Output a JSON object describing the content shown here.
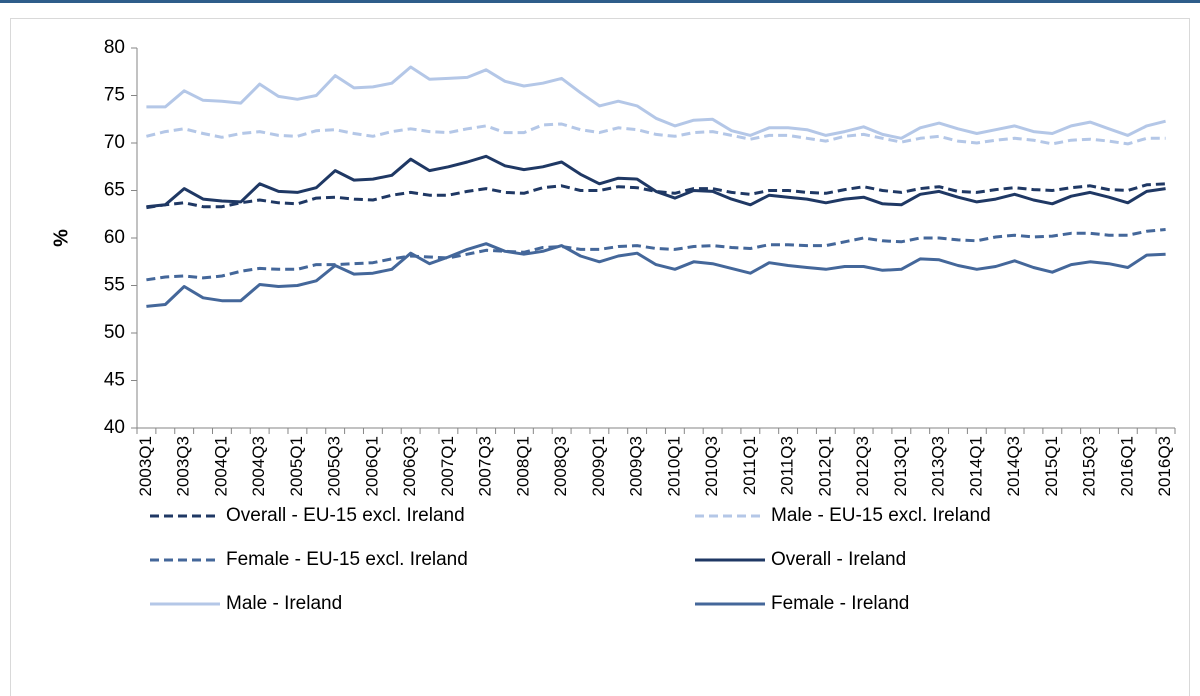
{
  "chart_data": {
    "type": "line",
    "y_label": "%",
    "categories": [
      "2003Q1",
      null,
      "2003Q3",
      null,
      "2004Q1",
      null,
      "2004Q3",
      null,
      "2005Q1",
      null,
      "2005Q3",
      null,
      "2006Q1",
      null,
      "2006Q3",
      null,
      "2007Q1",
      null,
      "2007Q3",
      null,
      "2008Q1",
      null,
      "2008Q3",
      null,
      "2009Q1",
      null,
      "2009Q3",
      null,
      "2010Q1",
      null,
      "2010Q3",
      null,
      "2011Q1",
      null,
      "2011Q3",
      null,
      "2012Q1",
      null,
      "2012Q3",
      null,
      "2013Q1",
      null,
      "2013Q3",
      null,
      "2014Q1",
      null,
      "2014Q3",
      null,
      "2015Q1",
      null,
      "2015Q3",
      null,
      "2016Q1",
      null,
      "2016Q3"
    ],
    "ylim": [
      40,
      80
    ],
    "yticks": [
      40,
      45,
      50,
      55,
      60,
      65,
      70,
      75,
      80
    ],
    "grid": false,
    "legend": "bottom",
    "series": [
      {
        "name": "Overall - EU-15 excl. Ireland",
        "color": "#1f3864",
        "dash": true,
        "values": [
          63.2,
          63.5,
          63.7,
          63.3,
          63.3,
          63.7,
          64.0,
          63.7,
          63.6,
          64.2,
          64.3,
          64.1,
          64.0,
          64.5,
          64.8,
          64.5,
          64.5,
          64.9,
          65.2,
          64.8,
          64.7,
          65.3,
          65.5,
          65.0,
          65.0,
          65.4,
          65.3,
          64.9,
          64.7,
          65.2,
          65.2,
          64.8,
          64.6,
          65.0,
          65.0,
          64.8,
          64.7,
          65.1,
          65.4,
          65.0,
          64.8,
          65.2,
          65.4,
          64.9,
          64.8,
          65.1,
          65.3,
          65.1,
          65.0,
          65.3,
          65.5,
          65.1,
          65.0,
          65.6,
          65.7
        ]
      },
      {
        "name": "Male - EU-15 excl. Ireland",
        "color": "#b4c7e7",
        "dash": true,
        "values": [
          70.7,
          71.2,
          71.5,
          71.0,
          70.6,
          71.0,
          71.2,
          70.8,
          70.7,
          71.3,
          71.4,
          71.0,
          70.7,
          71.2,
          71.5,
          71.2,
          71.1,
          71.5,
          71.8,
          71.1,
          71.1,
          71.9,
          72.0,
          71.4,
          71.1,
          71.6,
          71.4,
          70.9,
          70.7,
          71.1,
          71.2,
          70.8,
          70.4,
          70.8,
          70.8,
          70.5,
          70.2,
          70.7,
          70.9,
          70.5,
          70.1,
          70.5,
          70.7,
          70.2,
          70.0,
          70.3,
          70.5,
          70.3,
          69.9,
          70.3,
          70.4,
          70.2,
          69.9,
          70.5,
          70.5
        ]
      },
      {
        "name": "Female - EU-15 excl. Ireland",
        "color": "#44679a",
        "dash": true,
        "values": [
          55.6,
          55.9,
          56.0,
          55.8,
          56.0,
          56.5,
          56.8,
          56.7,
          56.7,
          57.2,
          57.2,
          57.3,
          57.4,
          57.8,
          58.1,
          58.0,
          57.9,
          58.3,
          58.7,
          58.6,
          58.5,
          59.0,
          59.1,
          58.8,
          58.8,
          59.1,
          59.2,
          58.9,
          58.8,
          59.1,
          59.2,
          59.0,
          58.9,
          59.3,
          59.3,
          59.2,
          59.2,
          59.6,
          60.0,
          59.7,
          59.6,
          60.0,
          60.0,
          59.8,
          59.7,
          60.1,
          60.3,
          60.1,
          60.2,
          60.5,
          60.5,
          60.3,
          60.3,
          60.7,
          60.9
        ]
      },
      {
        "name": "Overall - Ireland",
        "color": "#1f3864",
        "dash": false,
        "values": [
          63.3,
          63.5,
          65.2,
          64.1,
          63.9,
          63.8,
          65.7,
          64.9,
          64.8,
          65.3,
          67.1,
          66.1,
          66.2,
          66.6,
          68.3,
          67.1,
          67.5,
          68.0,
          68.6,
          67.6,
          67.2,
          67.5,
          68.0,
          66.7,
          65.7,
          66.3,
          66.2,
          64.9,
          64.2,
          65.0,
          64.9,
          64.1,
          63.5,
          64.5,
          64.3,
          64.1,
          63.7,
          64.1,
          64.3,
          63.6,
          63.5,
          64.6,
          64.9,
          64.3,
          63.8,
          64.1,
          64.6,
          64.0,
          63.6,
          64.4,
          64.8,
          64.3,
          63.7,
          64.9,
          65.2
        ]
      },
      {
        "name": "Male - Ireland",
        "color": "#b4c7e7",
        "dash": false,
        "values": [
          73.8,
          73.8,
          75.5,
          74.5,
          74.4,
          74.2,
          76.2,
          74.9,
          74.6,
          75.0,
          77.1,
          75.8,
          75.9,
          76.3,
          78.0,
          76.7,
          76.8,
          76.9,
          77.7,
          76.5,
          76.0,
          76.3,
          76.8,
          75.3,
          73.9,
          74.4,
          73.9,
          72.6,
          71.8,
          72.4,
          72.5,
          71.3,
          70.8,
          71.6,
          71.6,
          71.4,
          70.8,
          71.2,
          71.7,
          70.9,
          70.5,
          71.6,
          72.1,
          71.5,
          71.0,
          71.4,
          71.8,
          71.2,
          71.0,
          71.8,
          72.2,
          71.5,
          70.8,
          71.8,
          72.3
        ]
      },
      {
        "name": "Female - Ireland",
        "color": "#44679a",
        "dash": false,
        "values": [
          52.8,
          53.0,
          54.9,
          53.7,
          53.4,
          53.4,
          55.1,
          54.9,
          55.0,
          55.5,
          57.1,
          56.2,
          56.3,
          56.7,
          58.4,
          57.3,
          58.0,
          58.8,
          59.4,
          58.6,
          58.3,
          58.6,
          59.2,
          58.1,
          57.5,
          58.1,
          58.4,
          57.2,
          56.7,
          57.5,
          57.3,
          56.8,
          56.3,
          57.4,
          57.1,
          56.9,
          56.7,
          57.0,
          57.0,
          56.6,
          56.7,
          57.8,
          57.7,
          57.1,
          56.7,
          57.0,
          57.6,
          56.9,
          56.4,
          57.2,
          57.5,
          57.3,
          56.9,
          58.2,
          58.3
        ]
      }
    ]
  }
}
